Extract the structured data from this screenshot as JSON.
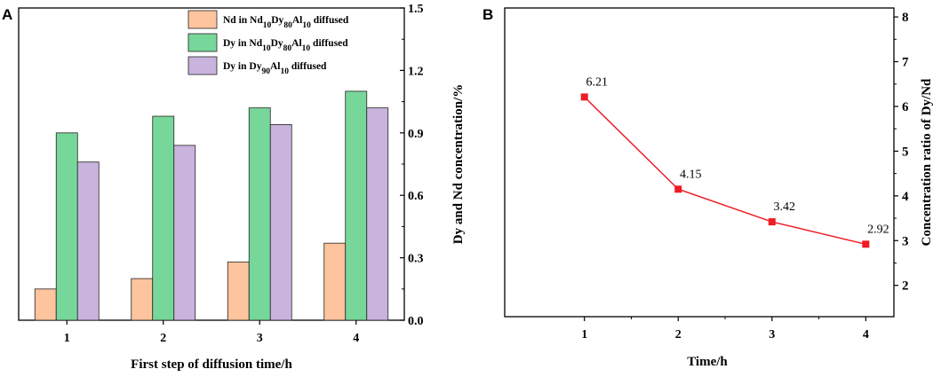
{
  "panel_a_label": "A",
  "panel_b_label": "B",
  "chart_data": [
    {
      "type": "bar",
      "panel": "A",
      "categories": [
        "1",
        "2",
        "3",
        "4"
      ],
      "xlabel": "First step of diffusion time/h",
      "ylabel": "Dy and Nd concentration/%",
      "ylim": [
        0,
        1.5
      ],
      "yticks": [
        "0.0",
        "0.3",
        "0.6",
        "0.9",
        "1.2",
        "1.5"
      ],
      "legend_position": "top-right",
      "series": [
        {
          "name": "Nd in Nd10Dy80Al10 diffused",
          "legend": {
            "pre": "Nd in Nd",
            "s1": "10",
            "m1": "Dy",
            "s2": "80",
            "m2": "Al",
            "s3": "10",
            "post": " diffused"
          },
          "color": "#FDC49E",
          "values": [
            0.15,
            0.2,
            0.28,
            0.37
          ]
        },
        {
          "name": "Dy in Nd10Dy80Al10 diffused",
          "legend": {
            "pre": "Dy in Nd",
            "s1": "10",
            "m1": "Dy",
            "s2": "80",
            "m2": "Al",
            "s3": "10",
            "post": " diffused"
          },
          "color": "#77D79A",
          "values": [
            0.9,
            0.98,
            1.02,
            1.1
          ]
        },
        {
          "name": "Dy in Dy90Al10 diffused",
          "legend": {
            "pre": "Dy in Dy",
            "s1": "90",
            "m1": "Al",
            "s2": "10",
            "m2": "",
            "s3": "",
            "post": " diffused"
          },
          "color": "#C8B4DD",
          "values": [
            0.76,
            0.84,
            0.94,
            1.02
          ]
        }
      ]
    },
    {
      "type": "line",
      "panel": "B",
      "x": [
        "1",
        "2",
        "3",
        "4"
      ],
      "xvals": [
        1,
        2,
        3,
        4
      ],
      "values": [
        6.21,
        4.15,
        3.42,
        2.92
      ],
      "labels": [
        "6.21",
        "4.15",
        "3.42",
        "2.92"
      ],
      "xlabel": "Time/h",
      "ylabel": "Concentration ratio of Dy/Nd",
      "ylim": [
        1.3,
        8.2
      ],
      "xlim": [
        0.15,
        4.3
      ],
      "yticks": [
        "2",
        "3",
        "4",
        "5",
        "6",
        "7",
        "8"
      ],
      "ytick_values": [
        2,
        3,
        4,
        5,
        6,
        7,
        8
      ],
      "color": "#EE1C24"
    }
  ]
}
